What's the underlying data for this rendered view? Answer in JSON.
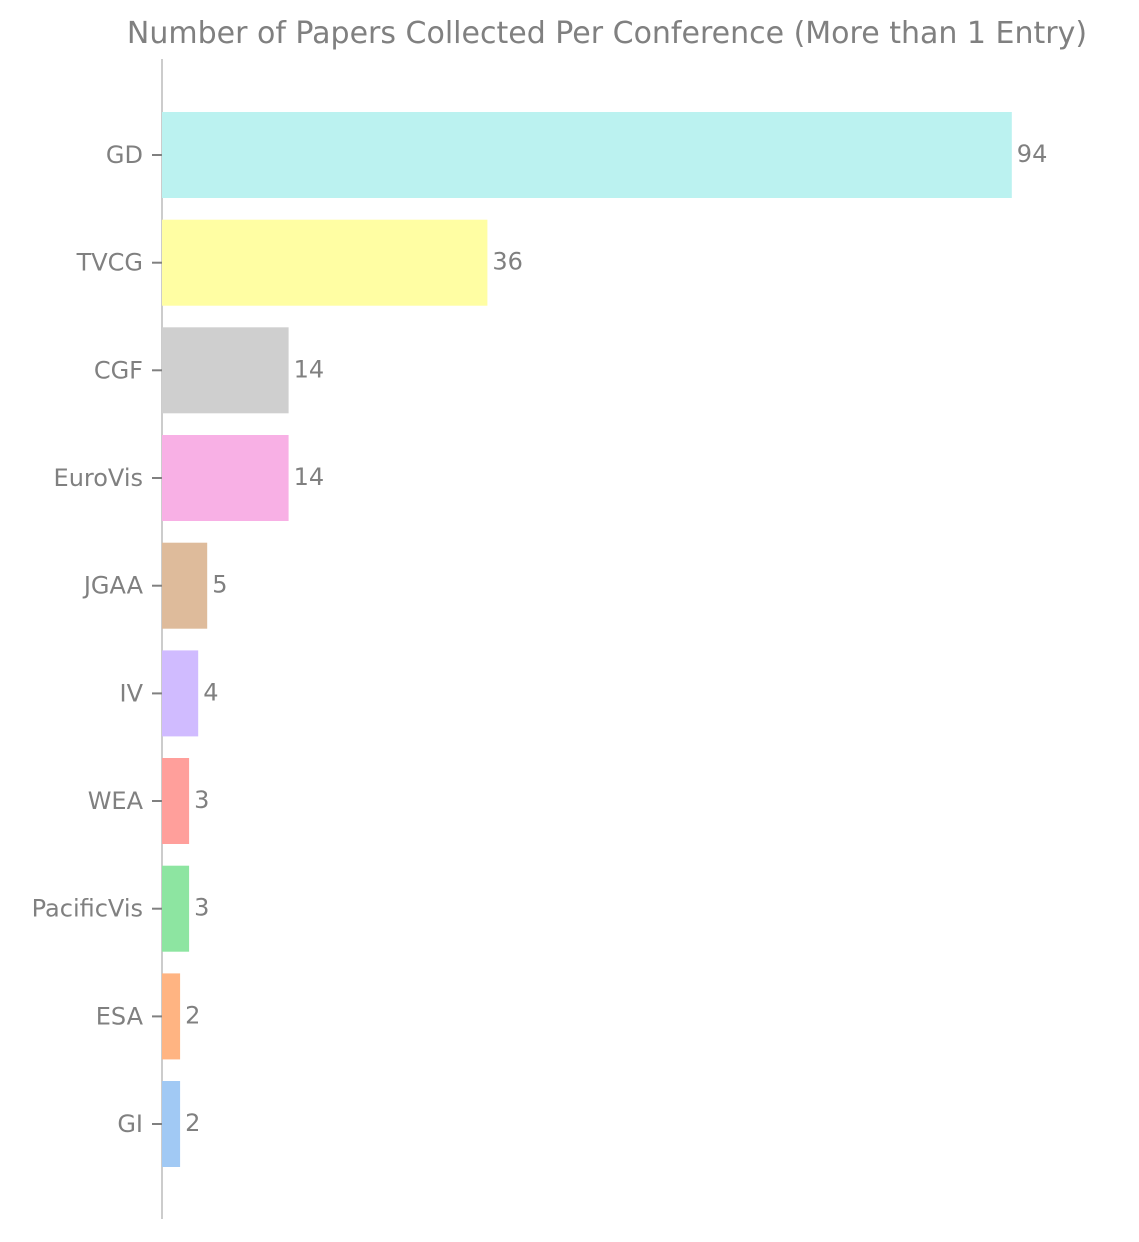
{
  "chart_data": {
    "type": "bar",
    "orientation": "horizontal",
    "title": "Number of Papers Collected Per Conference (More than 1 Entry)",
    "categories": [
      "GD",
      "TVCG",
      "CGF",
      "EuroVis",
      "JGAA",
      "IV",
      "WEA",
      "PacificVis",
      "ESA",
      "GI"
    ],
    "values": [
      94,
      36,
      14,
      14,
      5,
      4,
      3,
      3,
      2,
      2
    ],
    "colors": [
      "#bbf2f0",
      "#fffea3",
      "#cfcfcf",
      "#f8b0e5",
      "#debb9b",
      "#d0bbff",
      "#ff9f9b",
      "#8de5a1",
      "#ffb482",
      "#a1c9f4"
    ],
    "xlim": [
      0,
      100
    ],
    "xlabel": "",
    "ylabel": "",
    "grid": false,
    "legend": "none",
    "data_labels": true,
    "text_color": "#808080",
    "axis_color": "#cccccc"
  }
}
